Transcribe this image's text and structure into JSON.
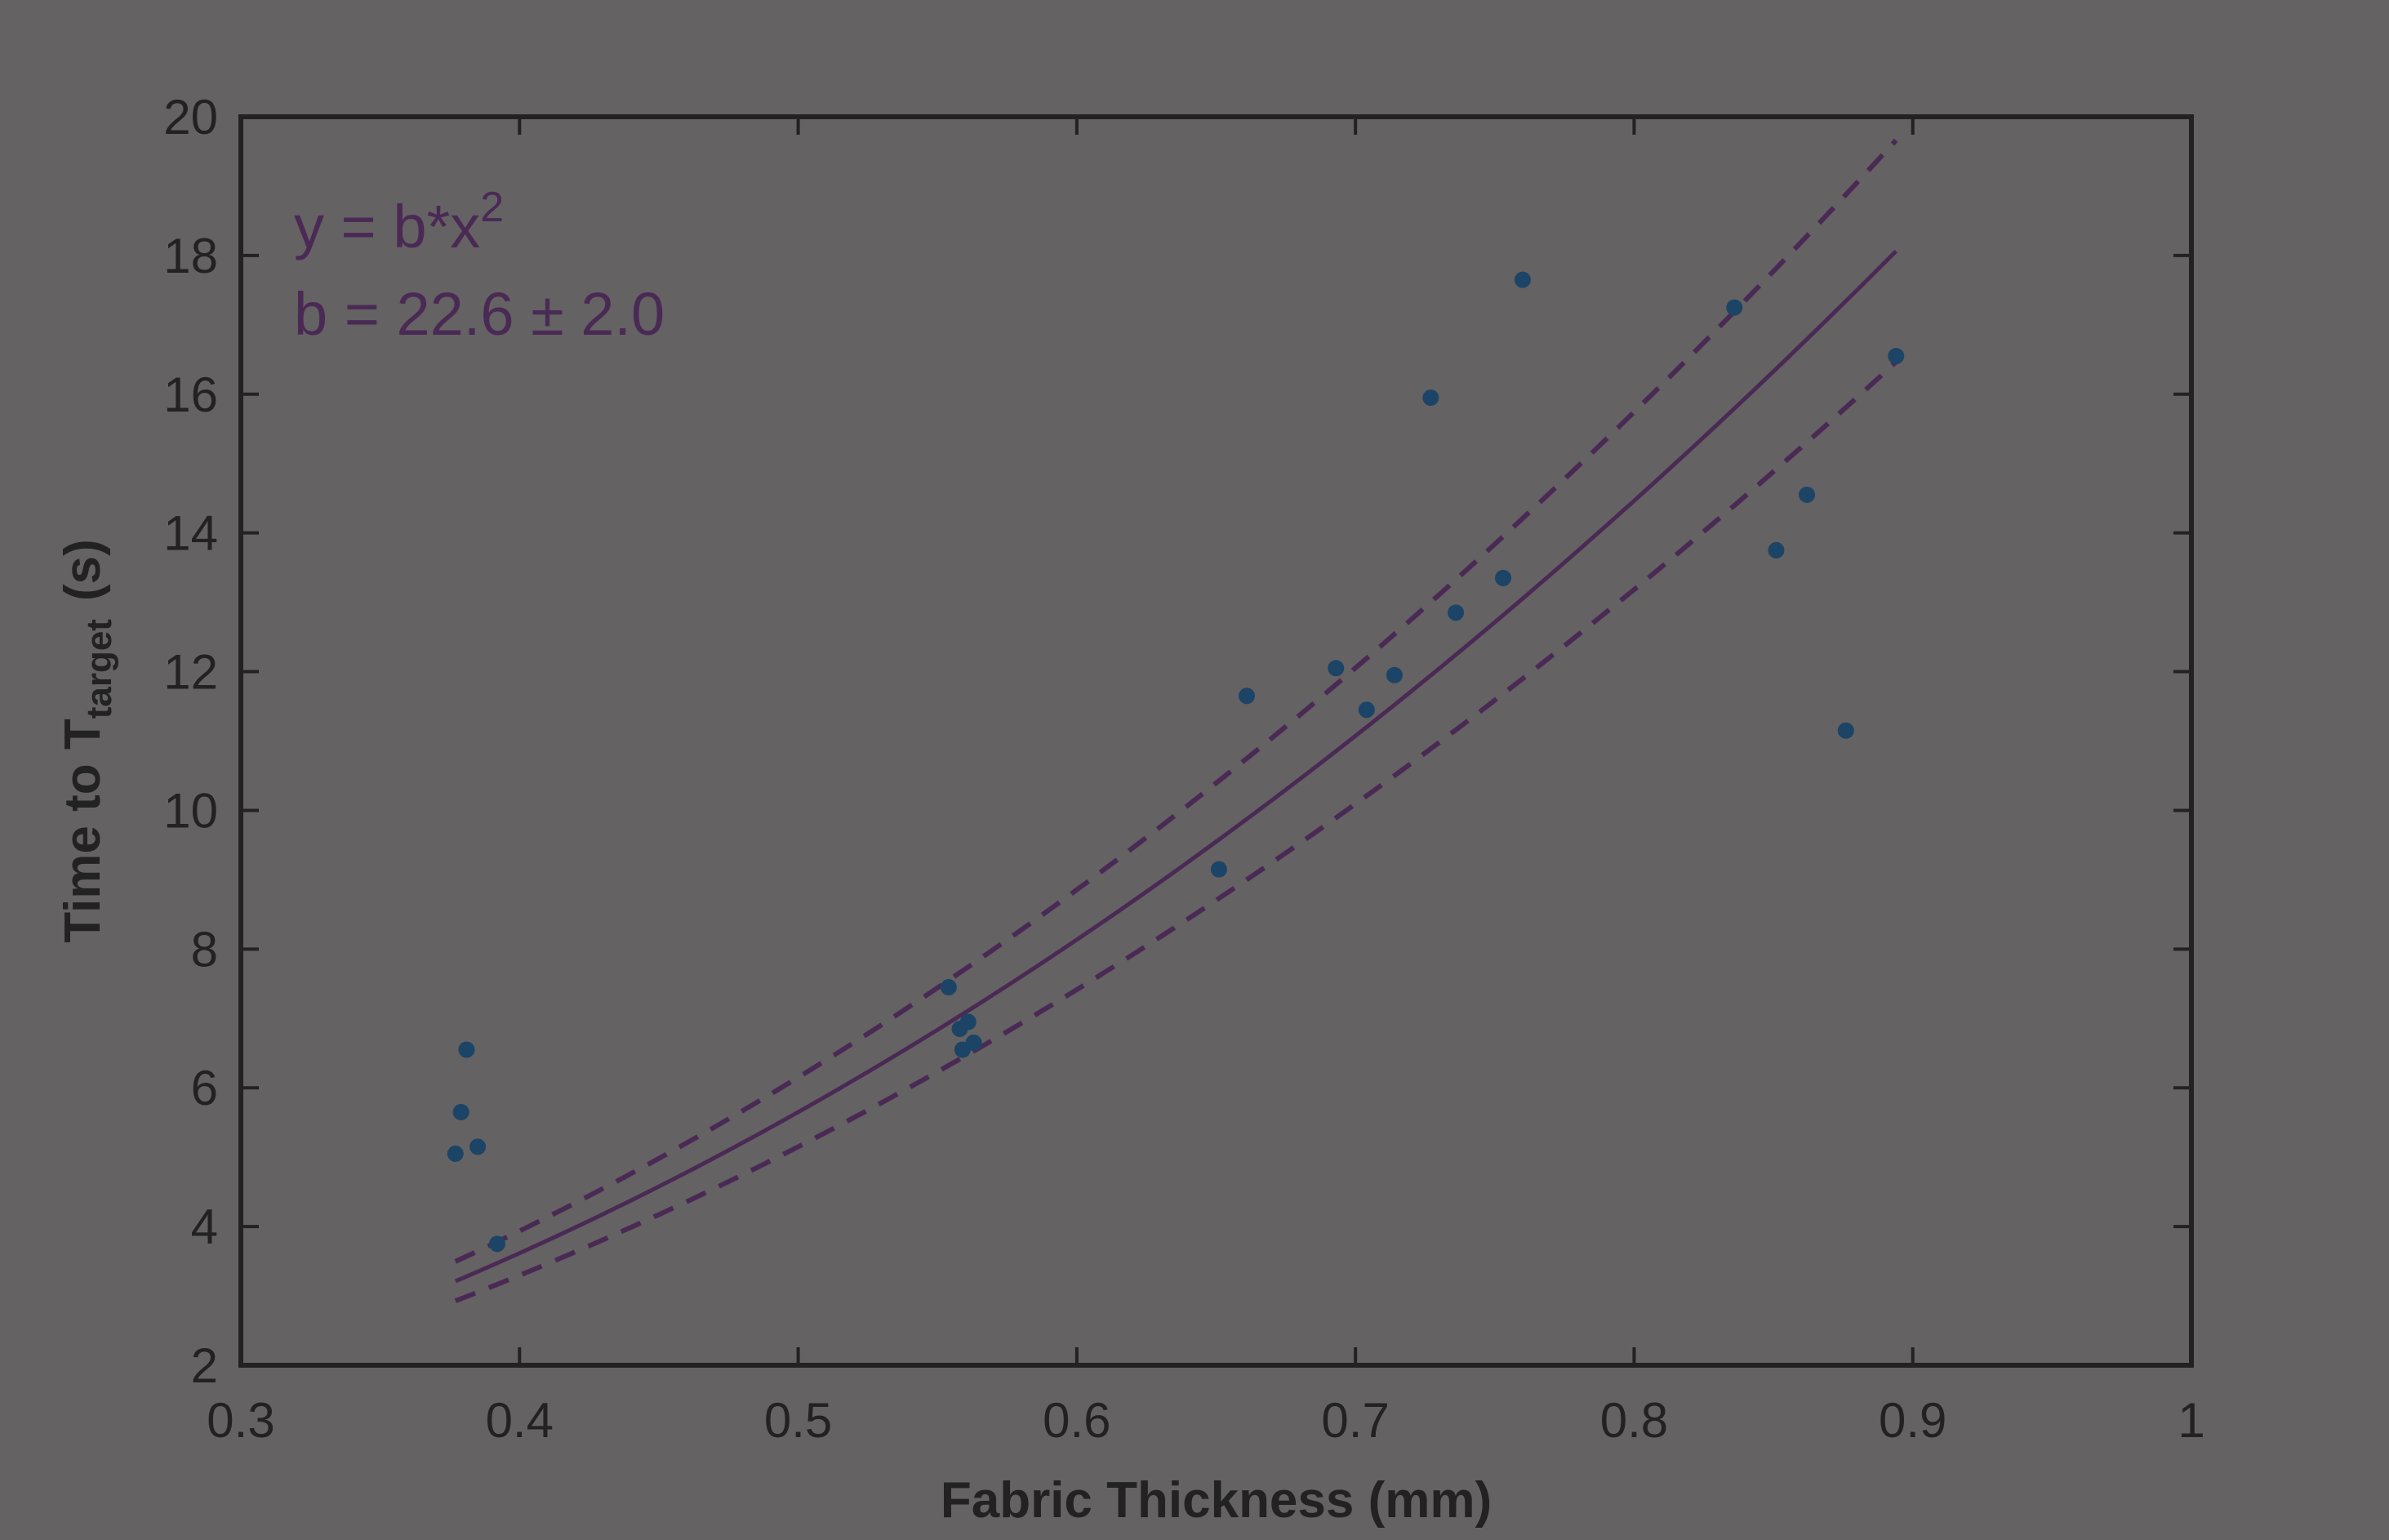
{
  "chart_data": {
    "type": "scatter",
    "title": "",
    "xlabel": "Fabric Thickness (mm)",
    "ylabel": {
      "main": "Time to T",
      "subscript": "target",
      "unit": "(s)"
    },
    "xlim": [
      0.3,
      1.0
    ],
    "ylim": [
      2,
      20
    ],
    "x_ticks": [
      0.3,
      0.4,
      0.5,
      0.6,
      0.7,
      0.8,
      0.9,
      1.0
    ],
    "x_tick_labels": [
      "0.3",
      "0.4",
      "0.5",
      "0.6",
      "0.7",
      "0.8",
      "0.9",
      "1"
    ],
    "y_ticks": [
      2,
      4,
      6,
      8,
      10,
      12,
      14,
      16,
      18,
      20
    ],
    "y_tick_labels": [
      "2",
      "4",
      "6",
      "8",
      "10",
      "12",
      "14",
      "16",
      "18",
      "20"
    ],
    "grid": false,
    "background_color": "#646263",
    "axis_color": "#222222",
    "points_color": "#1c4466",
    "fit_color": "#4a2a55",
    "points": [
      {
        "x": 0.377,
        "y": 5.05
      },
      {
        "x": 0.379,
        "y": 5.65
      },
      {
        "x": 0.381,
        "y": 6.55
      },
      {
        "x": 0.385,
        "y": 5.15
      },
      {
        "x": 0.392,
        "y": 3.75
      },
      {
        "x": 0.554,
        "y": 7.45
      },
      {
        "x": 0.558,
        "y": 6.85
      },
      {
        "x": 0.559,
        "y": 6.55
      },
      {
        "x": 0.561,
        "y": 6.95
      },
      {
        "x": 0.563,
        "y": 6.65
      },
      {
        "x": 0.651,
        "y": 9.15
      },
      {
        "x": 0.661,
        "y": 11.65
      },
      {
        "x": 0.693,
        "y": 12.05
      },
      {
        "x": 0.704,
        "y": 11.45
      },
      {
        "x": 0.714,
        "y": 11.95
      },
      {
        "x": 0.727,
        "y": 15.95
      },
      {
        "x": 0.736,
        "y": 12.85
      },
      {
        "x": 0.753,
        "y": 13.35
      },
      {
        "x": 0.76,
        "y": 17.65
      },
      {
        "x": 0.836,
        "y": 17.25
      },
      {
        "x": 0.851,
        "y": 13.75
      },
      {
        "x": 0.862,
        "y": 14.55
      },
      {
        "x": 0.876,
        "y": 11.15
      },
      {
        "x": 0.894,
        "y": 16.55
      }
    ],
    "fit": {
      "model": "y = b*x^2",
      "b": 22.6,
      "b_uncertainty": 2.0,
      "x_range": [
        0.377,
        0.894
      ],
      "lower_b": 20.6,
      "upper_b": 24.6
    },
    "annotation": {
      "line1_prefix": "y = b*x",
      "line1_superscript": "2",
      "line2": "b = 22.6 ± 2.0"
    }
  }
}
